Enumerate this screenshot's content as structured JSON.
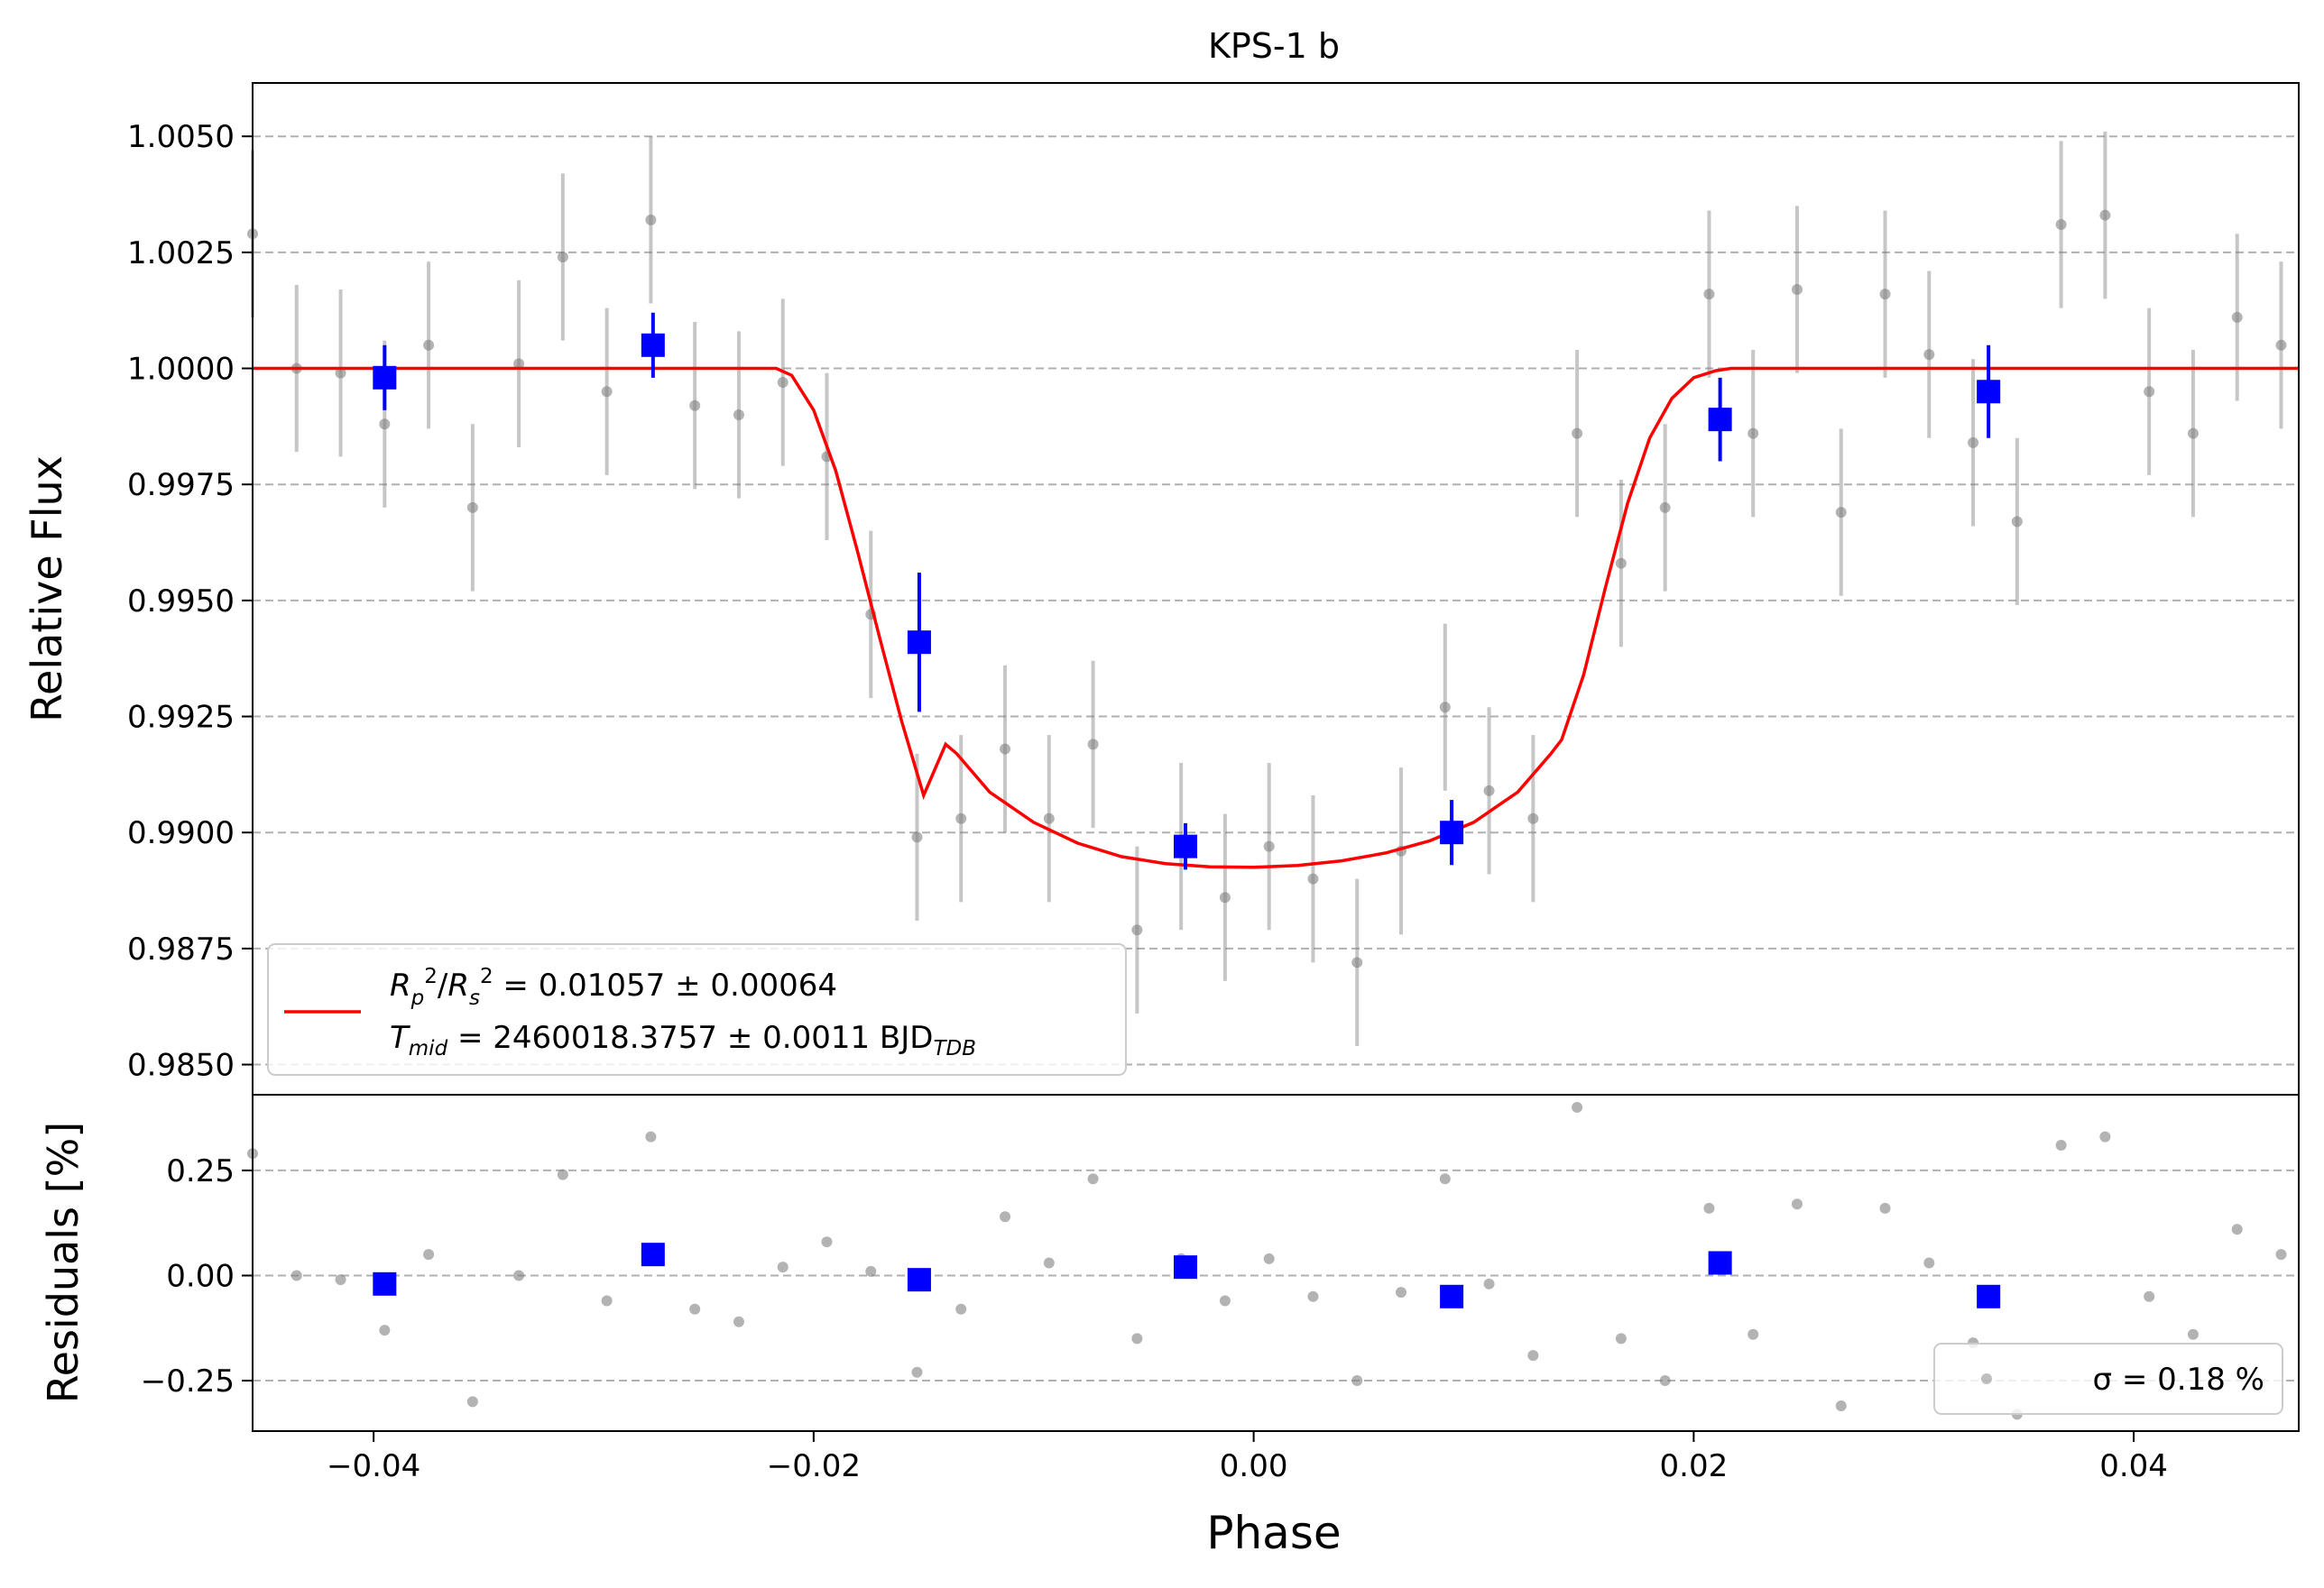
{
  "chart_data": [
    {
      "type": "scatter",
      "title": "KPS-1 b",
      "xlabel": "",
      "ylabel": "Relative Flux",
      "xlim": [
        -0.0455,
        0.0475
      ],
      "ylim": [
        0.98435,
        1.00615
      ],
      "yticks": [
        0.985,
        0.9875,
        0.99,
        0.9925,
        0.995,
        0.9975,
        1.0,
        1.0025,
        1.005
      ],
      "ytick_labels": [
        "0.9850",
        "0.9875",
        "0.9900",
        "0.9925",
        "0.9950",
        "0.9975",
        "1.0000",
        "1.0025",
        "1.0050"
      ],
      "grid": "horizontal dashed",
      "legend_position": "lower-left",
      "legend": {
        "fit_label_line1": "R_p^2/R_s^2 = 0.01057 ± 0.00064",
        "fit_label_line2": "T_mid = 2460018.3757 ± 0.0011 BJD_TDB"
      },
      "colors": {
        "raw": "#808080",
        "binned": "#0000ff",
        "model": "#ff0000",
        "grid": "#b0b0b0"
      },
      "raw_series": {
        "x": [
          -0.0455,
          -0.0435,
          -0.0415,
          -0.0395,
          -0.0375,
          -0.0355,
          -0.0334,
          -0.0314,
          -0.0294,
          -0.0274,
          -0.0254,
          -0.0234,
          -0.0214,
          -0.0194,
          -0.0174,
          -0.0153,
          -0.0133,
          -0.0113,
          -0.0093,
          -0.0073,
          -0.0053,
          -0.0033,
          -0.0013,
          0.0007,
          0.0027,
          0.0047,
          0.0067,
          0.0087,
          0.0107,
          0.0127,
          0.0147,
          0.0167,
          0.0187,
          0.0207,
          0.0227,
          0.0247,
          0.0267,
          0.0287,
          0.0307,
          0.0327,
          0.0347,
          0.0367,
          0.0387,
          0.0407,
          0.0427,
          0.0447,
          0.0467
        ],
        "y": [
          1.0029,
          1.0,
          0.9999,
          0.9988,
          1.0005,
          0.997,
          1.0001,
          1.0024,
          0.9995,
          1.0032,
          0.9992,
          0.999,
          0.9997,
          0.9981,
          0.9947,
          0.9899,
          0.9903,
          0.9918,
          0.9903,
          0.9919,
          0.9879,
          0.9897,
          0.9886,
          0.9897,
          0.989,
          0.9872,
          0.9896,
          0.9927,
          0.9909,
          0.9903,
          0.9986,
          0.9958,
          0.997,
          1.0016,
          0.9986,
          1.0017,
          0.9969,
          1.0016,
          1.0003,
          0.9984,
          0.9967,
          1.0031,
          1.0033,
          0.9995,
          0.9986,
          1.0011,
          1.0005
        ],
        "yerr": 0.0018
      },
      "binned_series": {
        "x": [
          -0.0395,
          -0.0273,
          -0.0152,
          -0.0031,
          0.009,
          0.0212,
          0.0334
        ],
        "y": [
          0.9998,
          1.0005,
          0.9941,
          0.9897,
          0.99,
          0.9989,
          0.9995
        ],
        "yerr": [
          0.0007,
          0.0007,
          0.0015,
          0.0005,
          0.0007,
          0.0009,
          0.001
        ]
      },
      "model": {
        "x": [
          -0.0455,
          -0.0217,
          -0.021,
          -0.02,
          -0.019,
          -0.018,
          -0.017,
          -0.016,
          -0.015,
          -0.014,
          -0.0135,
          -0.012,
          -0.01,
          -0.008,
          -0.006,
          -0.004,
          -0.002,
          0.0,
          0.002,
          0.004,
          0.006,
          0.008,
          0.01,
          0.012,
          0.0135,
          0.014,
          0.015,
          0.016,
          0.017,
          0.018,
          0.019,
          0.02,
          0.021,
          0.0217,
          0.0475
        ],
        "y": [
          1.0,
          1.0,
          0.99985,
          0.9991,
          0.9978,
          0.99605,
          0.9942,
          0.9924,
          0.9908,
          0.9919,
          0.9917,
          0.99087,
          0.99022,
          0.98977,
          0.98948,
          0.98933,
          0.98926,
          0.98925,
          0.98929,
          0.98939,
          0.98956,
          0.98982,
          0.99022,
          0.99087,
          0.99169,
          0.992,
          0.9934,
          0.9953,
          0.9971,
          0.9985,
          0.99935,
          0.9998,
          0.99995,
          1.0,
          1.0
        ]
      }
    },
    {
      "type": "scatter",
      "title": "",
      "xlabel": "Phase",
      "ylabel": "Residuals [%]",
      "xlim": [
        -0.0455,
        0.0475
      ],
      "ylim": [
        -0.37,
        0.43
      ],
      "yticks": [
        -0.25,
        0.0,
        0.25
      ],
      "ytick_labels": [
        "−0.25",
        "0.00",
        "0.25"
      ],
      "xticks": [
        -0.04,
        -0.02,
        0.0,
        0.02,
        0.04
      ],
      "xtick_labels": [
        "−0.04",
        "−0.02",
        "0.00",
        "0.02",
        "0.04"
      ],
      "grid": "horizontal dashed",
      "legend_position": "lower-right",
      "legend": {
        "sigma_label": "σ = 0.18 %"
      },
      "raw_series": {
        "x": [
          -0.0455,
          -0.0435,
          -0.0415,
          -0.0395,
          -0.0375,
          -0.0355,
          -0.0334,
          -0.0314,
          -0.0294,
          -0.0274,
          -0.0254,
          -0.0234,
          -0.0214,
          -0.0194,
          -0.0174,
          -0.0153,
          -0.0133,
          -0.0113,
          -0.0093,
          -0.0073,
          -0.0053,
          -0.0033,
          -0.0013,
          0.0007,
          0.0027,
          0.0047,
          0.0067,
          0.0087,
          0.0107,
          0.0127,
          0.0147,
          0.0167,
          0.0187,
          0.0207,
          0.0227,
          0.0247,
          0.0267,
          0.0287,
          0.0307,
          0.0327,
          0.0347,
          0.0367,
          0.0387,
          0.0407,
          0.0427,
          0.0447,
          0.0467
        ],
        "y": [
          0.29,
          0.0,
          -0.01,
          -0.13,
          0.05,
          -0.3,
          0.0,
          0.24,
          -0.06,
          0.33,
          -0.08,
          -0.11,
          0.02,
          0.08,
          0.01,
          -0.23,
          -0.08,
          0.14,
          0.03,
          0.23,
          -0.15,
          0.04,
          -0.06,
          0.04,
          -0.05,
          -0.25,
          -0.04,
          0.23,
          -0.02,
          -0.19,
          0.4,
          -0.15,
          -0.25,
          0.16,
          -0.14,
          0.17,
          -0.31,
          0.16,
          0.03,
          -0.16,
          -0.33,
          0.31,
          0.33,
          -0.05,
          -0.14,
          0.11,
          0.05
        ]
      },
      "binned_series": {
        "x": [
          -0.0395,
          -0.0273,
          -0.0152,
          -0.0031,
          0.009,
          0.0212,
          0.0334
        ],
        "y": [
          -0.02,
          0.05,
          -0.01,
          0.02,
          -0.05,
          0.03,
          -0.05
        ]
      }
    }
  ]
}
